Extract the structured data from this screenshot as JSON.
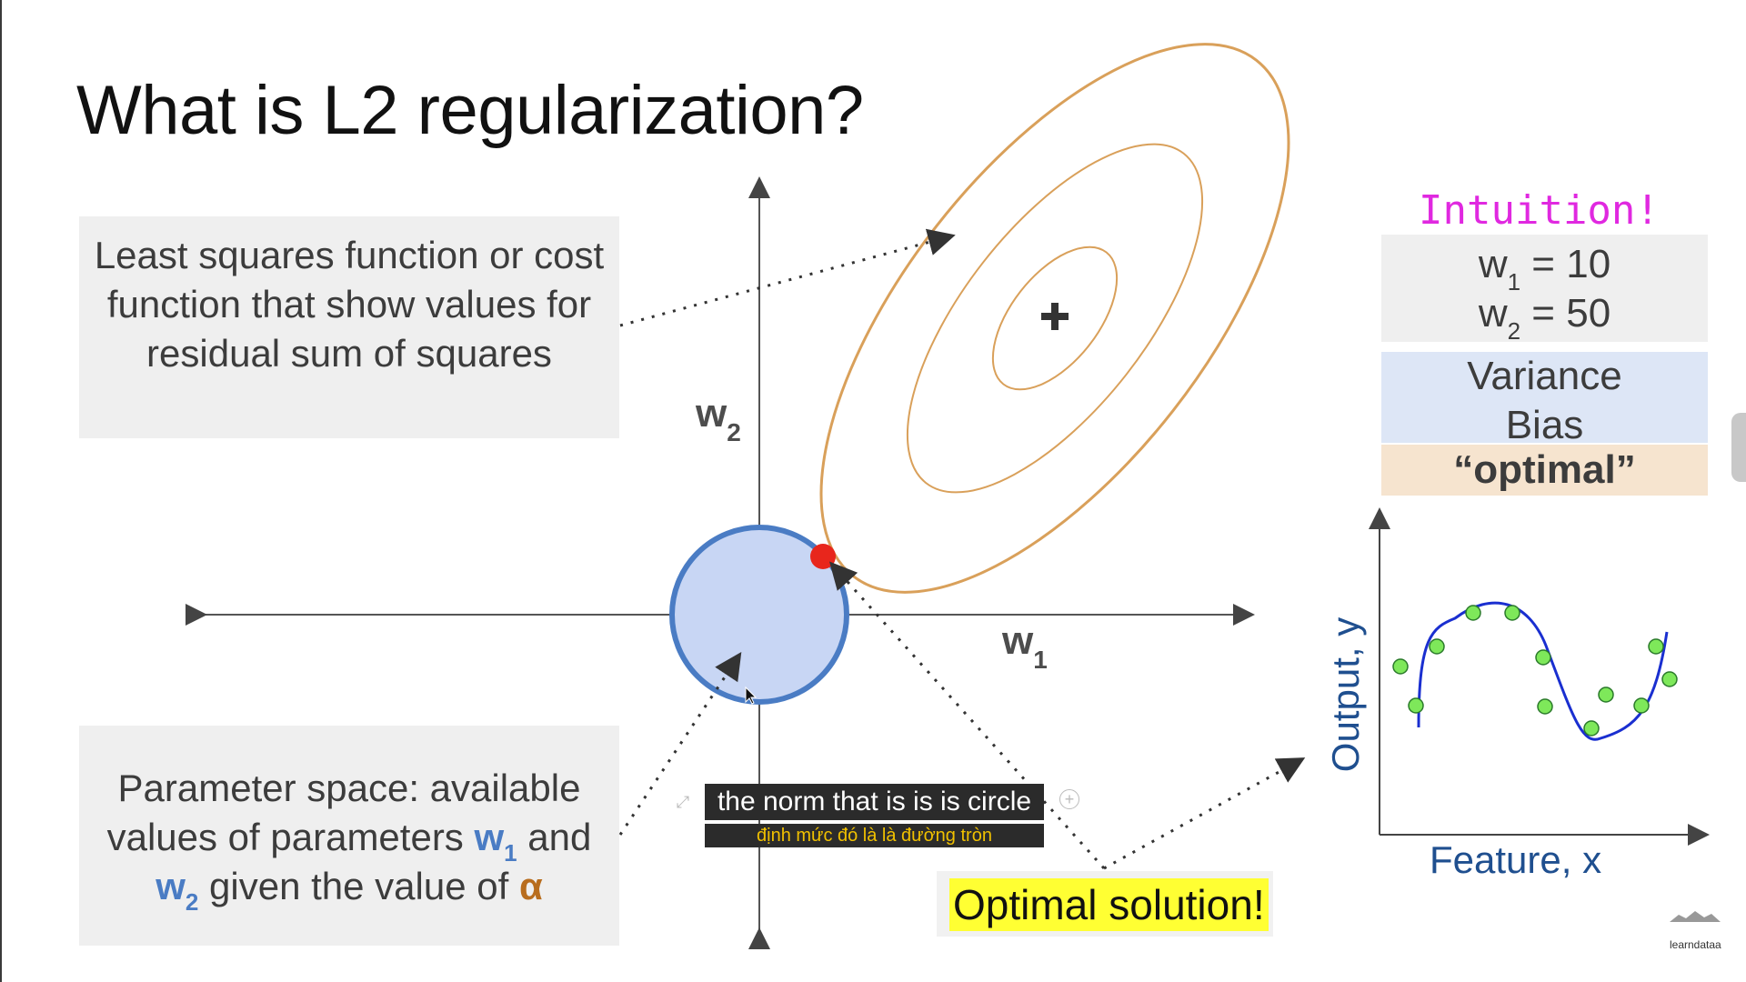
{
  "slide": {
    "title": "What is L2 regularization?",
    "least_squares_box": "Least squares function or cost function that show values for residual sum of squares",
    "param_box": {
      "prefix": "Parameter space: available values of parameters",
      "w1": "w",
      "w1_sub": "1",
      "and": "and",
      "w2": "w",
      "w2_sub": "2",
      "suffix": "given the value of",
      "alpha": "α"
    },
    "axis_w2": {
      "letter": "w",
      "sub": "2"
    },
    "axis_w1": {
      "letter": "w",
      "sub": "1"
    },
    "optimal_label": "Optimal solution!",
    "intuition": {
      "heading": "Intuition!",
      "w1_line": {
        "letter": "w",
        "sub": "1",
        "value": "= 10"
      },
      "w2_line": {
        "letter": "w",
        "sub": "2",
        "value": "= 50"
      },
      "variance": "Variance",
      "bias": "Bias",
      "optimal": "“optimal”"
    },
    "fit_plot": {
      "ylabel": "Output, y",
      "xlabel": "Feature, x"
    },
    "colors": {
      "ellipse": "#d9a05a",
      "circle_fill": "#c8d6f4",
      "circle_stroke": "#4a7cc4",
      "optimum_point": "#e8261c",
      "curve": "#1a2fd0",
      "points": "#7ee85a",
      "axis_label_blue": "#1f4f8f"
    }
  },
  "caption": {
    "text": "the norm that is is is circle",
    "translation": "định mức đó là là đường tròn"
  },
  "watermark": "learndataa"
}
